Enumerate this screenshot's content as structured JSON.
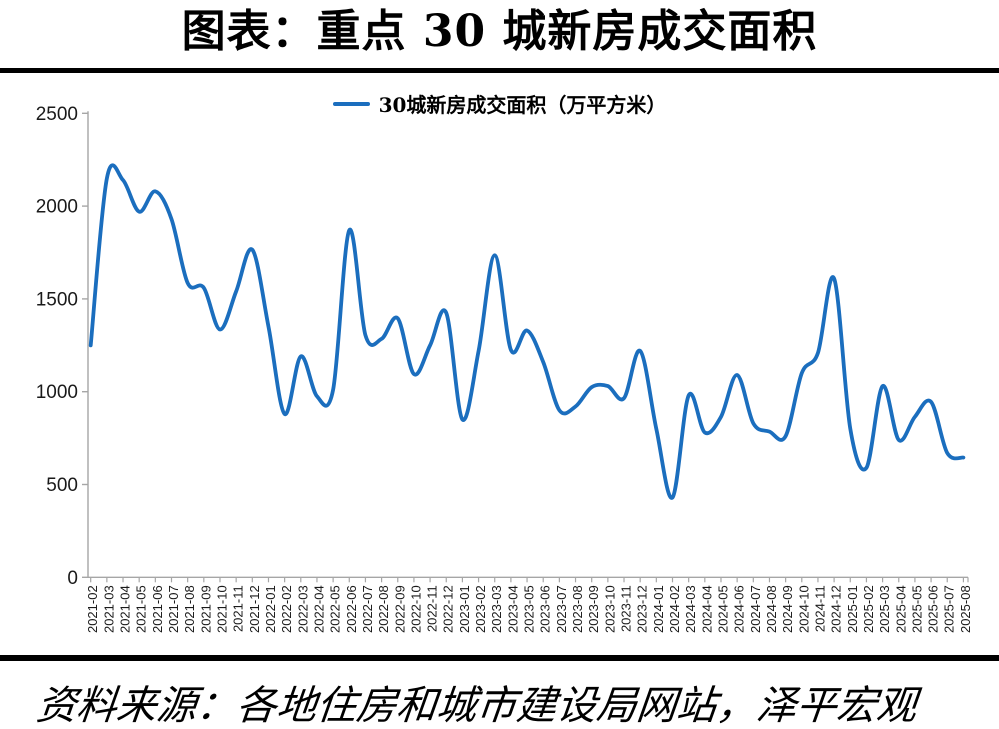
{
  "header": {
    "title": "图表：重点 30 城新房成交面积"
  },
  "footer": {
    "source": "资料来源：各地住房和城市建设局网站，泽平宏观"
  },
  "chart_data": {
    "type": "line",
    "title": "图表：重点 30 城新房成交面积",
    "legend": "30城新房成交面积（万平方米）",
    "legend_position": "top-center",
    "smooth": true,
    "grid": false,
    "x_label_rotation": -90,
    "line_color": "#1B6EBE",
    "axis_color": "#A6A6A6",
    "tick_label_color": "#1a1a1a",
    "ylim": [
      0,
      2500
    ],
    "y_ticks": [
      0,
      500,
      1000,
      1500,
      2000,
      2500
    ],
    "xlabel": "",
    "ylabel": "",
    "categories": [
      "2021-02",
      "2021-03",
      "2021-04",
      "2021-05",
      "2021-06",
      "2021-07",
      "2021-08",
      "2021-09",
      "2021-10",
      "2021-11",
      "2021-12",
      "2022-01",
      "2022-02",
      "2022-03",
      "2022-04",
      "2022-05",
      "2022-06",
      "2022-07",
      "2022-08",
      "2022-09",
      "2022-10",
      "2022-11",
      "2022-12",
      "2023-01",
      "2023-02",
      "2023-03",
      "2023-04",
      "2023-05",
      "2023-06",
      "2023-07",
      "2023-08",
      "2023-09",
      "2023-10",
      "2023-11",
      "2023-12",
      "2024-01",
      "2024-02",
      "2024-03",
      "2024-04",
      "2024-05",
      "2024-06",
      "2024-07",
      "2024-08",
      "2024-09",
      "2024-10",
      "2024-11",
      "2024-12",
      "2025-01",
      "2025-02",
      "2025-03",
      "2025-04",
      "2025-05",
      "2025-06",
      "2025-07",
      "2025-08"
    ],
    "values": [
      1250,
      2150,
      2140,
      1970,
      2080,
      1930,
      1585,
      1560,
      1335,
      1540,
      1765,
      1350,
      880,
      1190,
      975,
      1010,
      1870,
      1305,
      1285,
      1395,
      1095,
      1250,
      1425,
      850,
      1220,
      1735,
      1225,
      1330,
      1160,
      900,
      920,
      1025,
      1030,
      965,
      1220,
      800,
      430,
      980,
      780,
      865,
      1090,
      830,
      785,
      760,
      1100,
      1210,
      1610,
      800,
      590,
      1030,
      740,
      865,
      945,
      670,
      645
    ]
  }
}
